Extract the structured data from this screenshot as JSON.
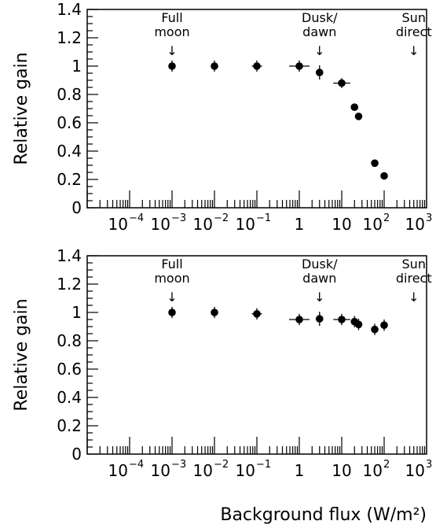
{
  "chart_data": [
    {
      "type": "scatter",
      "ylabel": "Relative gain",
      "xscale": "log",
      "xlim": [
        1e-05,
        1000.0
      ],
      "ylim": [
        0,
        1.4
      ],
      "xticks": [
        {
          "v": 0.0001,
          "base": "10",
          "exp": "−4"
        },
        {
          "v": 0.001,
          "base": "10",
          "exp": "−3"
        },
        {
          "v": 0.01,
          "base": "10",
          "exp": "−2"
        },
        {
          "v": 0.1,
          "base": "10",
          "exp": "−1"
        },
        {
          "v": 1,
          "base": "1",
          "exp": ""
        },
        {
          "v": 10,
          "base": "10",
          "exp": ""
        },
        {
          "v": 100,
          "base": "10",
          "exp": "2"
        },
        {
          "v": 1000,
          "base": "10",
          "exp": "3"
        }
      ],
      "yticks": [
        {
          "v": 0,
          "label": "0"
        },
        {
          "v": 0.2,
          "label": "0.2"
        },
        {
          "v": 0.4,
          "label": "0.4"
        },
        {
          "v": 0.6,
          "label": "0.6"
        },
        {
          "v": 0.8,
          "label": "0.8"
        },
        {
          "v": 1,
          "label": "1"
        },
        {
          "v": 1.2,
          "label": "1.2"
        },
        {
          "v": 1.4,
          "label": "1.4"
        }
      ],
      "annotations": [
        {
          "x": 0.001,
          "lines": [
            "Full",
            "moon"
          ],
          "arrow": "↓"
        },
        {
          "x": 3,
          "lines": [
            "Dusk/",
            "dawn"
          ],
          "arrow": "↓"
        },
        {
          "x": 500,
          "lines": [
            "Sun",
            "direct"
          ],
          "arrow": "↓"
        }
      ],
      "points": [
        {
          "x": 0.001,
          "y": 1.0,
          "yerr": 0.04,
          "xerr": 0
        },
        {
          "x": 0.01,
          "y": 1.0,
          "yerr": 0.04,
          "xerr": 0
        },
        {
          "x": 0.1,
          "y": 1.0,
          "yerr": 0.04,
          "xerr": 0.06
        },
        {
          "x": 1,
          "y": 1.0,
          "yerr": 0.04,
          "xerr": 0.12
        },
        {
          "x": 3,
          "y": 0.955,
          "yerr": 0.05,
          "xerr": 0
        },
        {
          "x": 10,
          "y": 0.88,
          "yerr": 0.035,
          "xerr": 0.1
        },
        {
          "x": 20,
          "y": 0.71,
          "yerr": 0.02,
          "xerr": 0
        },
        {
          "x": 25,
          "y": 0.645,
          "yerr": 0.02,
          "xerr": 0
        },
        {
          "x": 60,
          "y": 0.315,
          "yerr": 0.015,
          "xerr": 0
        },
        {
          "x": 100,
          "y": 0.225,
          "yerr": 0.015,
          "xerr": 0
        }
      ]
    },
    {
      "type": "scatter",
      "ylabel": "Relative gain",
      "xlabel": "Background flux (W/m²)",
      "xscale": "log",
      "xlim": [
        1e-05,
        1000.0
      ],
      "ylim": [
        0,
        1.4
      ],
      "xticks": [
        {
          "v": 0.0001,
          "base": "10",
          "exp": "−4"
        },
        {
          "v": 0.001,
          "base": "10",
          "exp": "−3"
        },
        {
          "v": 0.01,
          "base": "10",
          "exp": "−2"
        },
        {
          "v": 0.1,
          "base": "10",
          "exp": "−1"
        },
        {
          "v": 1,
          "base": "1",
          "exp": ""
        },
        {
          "v": 10,
          "base": "10",
          "exp": ""
        },
        {
          "v": 100,
          "base": "10",
          "exp": "2"
        },
        {
          "v": 1000,
          "base": "10",
          "exp": "3"
        }
      ],
      "yticks": [
        {
          "v": 0,
          "label": "0"
        },
        {
          "v": 0.2,
          "label": "0.2"
        },
        {
          "v": 0.4,
          "label": "0.4"
        },
        {
          "v": 0.6,
          "label": "0.6"
        },
        {
          "v": 0.8,
          "label": "0.8"
        },
        {
          "v": 1,
          "label": "1"
        },
        {
          "v": 1.2,
          "label": "1.2"
        },
        {
          "v": 1.4,
          "label": "1.4"
        }
      ],
      "annotations": [
        {
          "x": 0.001,
          "lines": [
            "Full",
            "moon"
          ],
          "arrow": "↓"
        },
        {
          "x": 3,
          "lines": [
            "Dusk/",
            "dawn"
          ],
          "arrow": "↓"
        },
        {
          "x": 500,
          "lines": [
            "Sun",
            "direct"
          ],
          "arrow": "↓"
        }
      ],
      "points": [
        {
          "x": 0.001,
          "y": 1.0,
          "yerr": 0.04,
          "xerr": 0
        },
        {
          "x": 0.01,
          "y": 1.0,
          "yerr": 0.04,
          "xerr": 0
        },
        {
          "x": 0.1,
          "y": 0.99,
          "yerr": 0.04,
          "xerr": 0.06
        },
        {
          "x": 1,
          "y": 0.95,
          "yerr": 0.04,
          "xerr": 0.12
        },
        {
          "x": 3,
          "y": 0.955,
          "yerr": 0.05,
          "xerr": 0
        },
        {
          "x": 10,
          "y": 0.95,
          "yerr": 0.04,
          "xerr": 0.1
        },
        {
          "x": 20,
          "y": 0.935,
          "yerr": 0.04,
          "xerr": 0
        },
        {
          "x": 25,
          "y": 0.915,
          "yerr": 0.04,
          "xerr": 0
        },
        {
          "x": 60,
          "y": 0.88,
          "yerr": 0.04,
          "xerr": 0
        },
        {
          "x": 100,
          "y": 0.91,
          "yerr": 0.04,
          "xerr": 0
        }
      ]
    }
  ]
}
